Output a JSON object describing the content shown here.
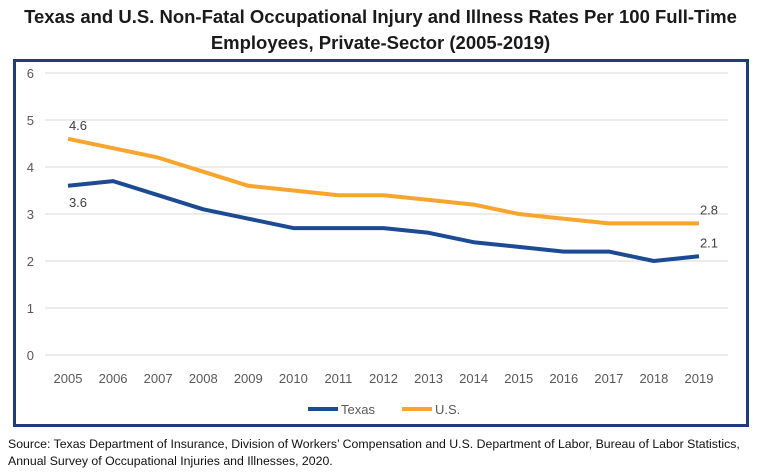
{
  "chart_data": {
    "type": "line",
    "title": "Texas and U.S. Non-Fatal Occupational Injury and Illness Rates Per 100 Full-Time Employees, Private-Sector (2005-2019)",
    "title_lines": [
      "Texas and U.S. Non-Fatal Occupational Injury and Illness Rates Per 100 Full-Time",
      "Employees, Private-Sector (2005-2019)"
    ],
    "x": [
      "2005",
      "2006",
      "2007",
      "2008",
      "2009",
      "2010",
      "2011",
      "2012",
      "2013",
      "2014",
      "2015",
      "2016",
      "2017",
      "2018",
      "2019"
    ],
    "ylim": [
      0,
      6
    ],
    "yticks": [
      "0",
      "1",
      "2",
      "3",
      "4",
      "5",
      "6"
    ],
    "grid": true,
    "legend_position": "bottom",
    "series": [
      {
        "name": "Texas",
        "color": "#1c4a93",
        "values": [
          3.6,
          3.7,
          3.4,
          3.1,
          2.9,
          2.7,
          2.7,
          2.7,
          2.6,
          2.4,
          2.3,
          2.2,
          2.2,
          2.0,
          2.1
        ],
        "data_labels": [
          {
            "index": 0,
            "text": "3.6",
            "pos": "below"
          },
          {
            "index": 14,
            "text": "2.1",
            "pos": "above"
          }
        ]
      },
      {
        "name": "U.S.",
        "color": "#f7a52d",
        "values": [
          4.6,
          4.4,
          4.2,
          3.9,
          3.6,
          3.5,
          3.4,
          3.4,
          3.3,
          3.2,
          3.0,
          2.9,
          2.8,
          2.8,
          2.8
        ],
        "data_labels": [
          {
            "index": 0,
            "text": "4.6",
            "pos": "above"
          },
          {
            "index": 14,
            "text": "2.8",
            "pos": "above"
          }
        ]
      }
    ]
  },
  "source": "Source: Texas Department of Insurance, Division of Workers’ Compensation and U.S. Department of Labor, Bureau of Labor Statistics, Annual Survey of Occupational Injuries and Illnesses, 2020.",
  "colors": {
    "frame": "#1f3c78",
    "grid": "#d9d9d9"
  }
}
